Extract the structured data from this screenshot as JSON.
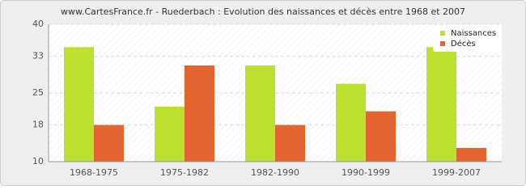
{
  "chart_data": {
    "type": "bar",
    "title": "www.CartesFrance.fr - Ruederbach : Evolution des naissances et décès entre 1968 et 2007",
    "categories": [
      "1968-1975",
      "1975-1982",
      "1982-1990",
      "1990-1999",
      "1999-2007"
    ],
    "series": [
      {
        "name": "Naissances",
        "color": "#bbe02f",
        "values": [
          35,
          22,
          31,
          27,
          35
        ]
      },
      {
        "name": "Décès",
        "color": "#e2642f",
        "values": [
          18,
          31,
          18,
          21,
          13
        ]
      }
    ],
    "ylim": [
      10,
      40
    ],
    "yticks": [
      10,
      18,
      25,
      33,
      40
    ],
    "grid": true,
    "legend": "top-right"
  }
}
